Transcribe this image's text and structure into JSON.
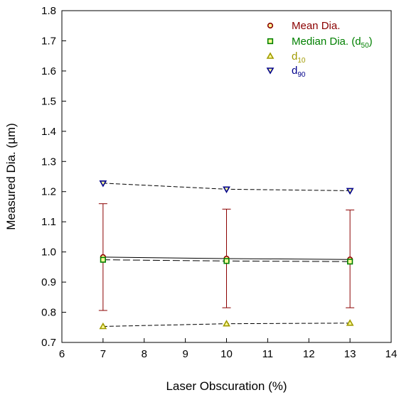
{
  "chart_data": {
    "type": "scatter",
    "title": "",
    "xlabel": "Laser Obscuration (%)",
    "ylabel": "Measured Dia. (µm)",
    "xlim": [
      6,
      14
    ],
    "ylim": [
      0.7,
      1.8
    ],
    "x_ticks": [
      "6",
      "7",
      "8",
      "9",
      "10",
      "11",
      "12",
      "13",
      "14"
    ],
    "y_ticks": [
      "0.7",
      "0.8",
      "0.9",
      "1.0",
      "1.1",
      "1.2",
      "1.3",
      "1.4",
      "1.5",
      "1.6",
      "1.7",
      "1.8"
    ],
    "grid": false,
    "legend_position": "top-right",
    "x": [
      7,
      10,
      13
    ],
    "series": [
      {
        "name": "Mean Dia.",
        "values": [
          0.983,
          0.978,
          0.975
        ],
        "error_low": [
          0.806,
          0.815,
          0.815
        ],
        "error_high": [
          1.16,
          1.142,
          1.139
        ],
        "marker": "circle",
        "color": "#8b0000",
        "line": "solid"
      },
      {
        "name": "Median Dia. (d",
        "name_sub": "50",
        "name_suffix": ")",
        "values": [
          0.974,
          0.97,
          0.968
        ],
        "marker": "square",
        "color": "#008000",
        "line": "longdash"
      },
      {
        "name": "d",
        "name_sub": "10",
        "values": [
          0.753,
          0.762,
          0.764
        ],
        "marker": "triangle-up",
        "color": "#a09a00",
        "line": "dash"
      },
      {
        "name": "d",
        "name_sub": "90",
        "values": [
          1.228,
          1.208,
          1.203
        ],
        "marker": "triangle-down",
        "color": "#00008b",
        "line": "dash"
      }
    ]
  }
}
